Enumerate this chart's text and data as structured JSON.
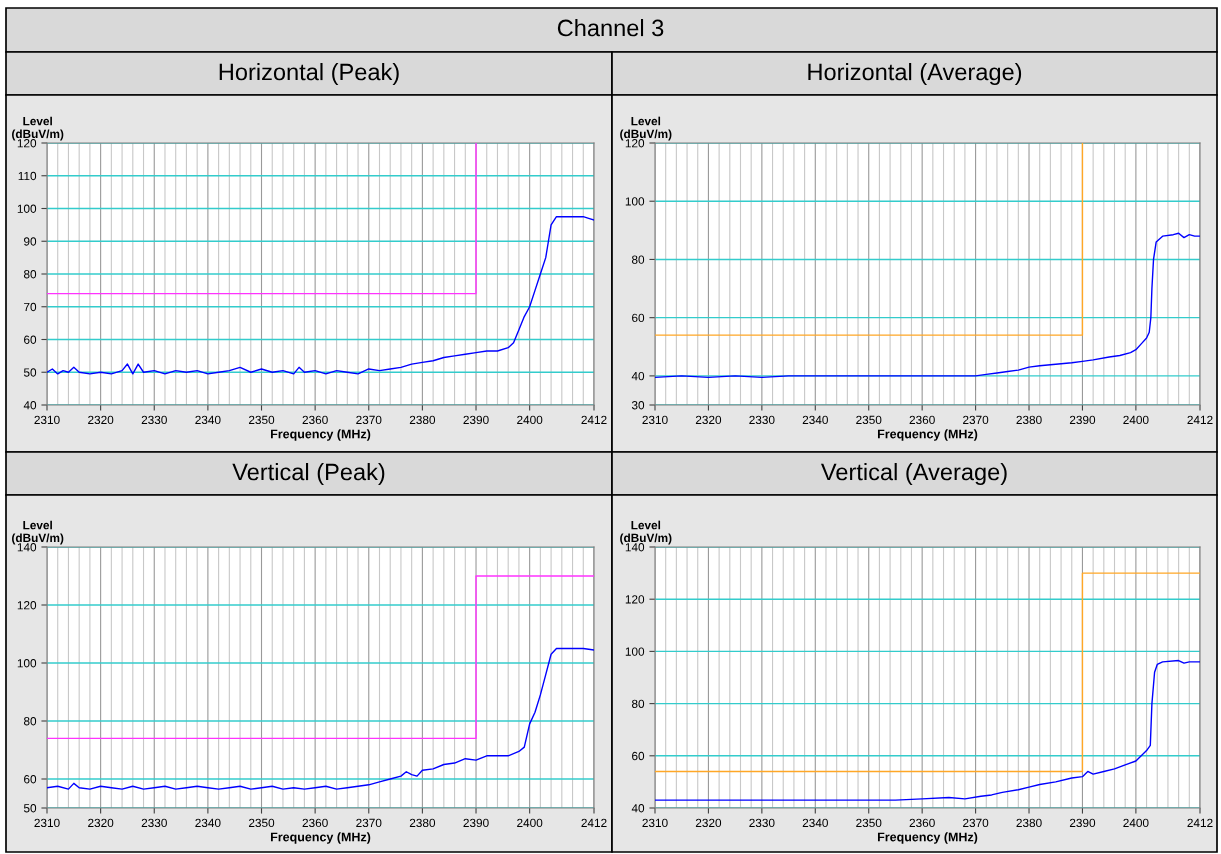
{
  "chart_data": [
    {
      "type": "line",
      "title": "Horizontal (Peak)",
      "annotations": [
        "Channel 3"
      ],
      "xlabel": "Frequency (MHz)",
      "ylabel": "Level\n(dBuV/m)",
      "xlim": [
        2310,
        2412
      ],
      "ylim": [
        40,
        120
      ],
      "yticks": [
        40,
        50,
        60,
        70,
        80,
        90,
        100,
        110,
        120
      ],
      "xticks": [
        2310,
        {
          "value": 2312,
          "label": null
        },
        {
          "value": 2314,
          "label": null
        },
        {
          "value": 2316,
          "label": null
        },
        {
          "value": 2318,
          "label": null
        },
        2320,
        {
          "value": 2322,
          "label": null
        },
        {
          "value": 2324,
          "label": null
        },
        {
          "value": 2326,
          "label": null
        },
        {
          "value": 2328,
          "label": null
        },
        2330,
        {
          "value": 2332,
          "label": null
        },
        {
          "value": 2334,
          "label": null
        },
        {
          "value": 2336,
          "label": null
        },
        {
          "value": 2338,
          "label": null
        },
        2340,
        {
          "value": 2342,
          "label": null
        },
        {
          "value": 2344,
          "label": null
        },
        {
          "value": 2346,
          "label": null
        },
        {
          "value": 2348,
          "label": null
        },
        2350,
        {
          "value": 2352,
          "label": null
        },
        {
          "value": 2354,
          "label": null
        },
        {
          "value": 2356,
          "label": null
        },
        {
          "value": 2358,
          "label": null
        },
        2360,
        {
          "value": 2362,
          "label": null
        },
        {
          "value": 2364,
          "label": null
        },
        {
          "value": 2366,
          "label": null
        },
        {
          "value": 2368,
          "label": null
        },
        2370,
        {
          "value": 2372,
          "label": null
        },
        {
          "value": 2374,
          "label": null
        },
        {
          "value": 2376,
          "label": null
        },
        {
          "value": 2378,
          "label": null
        },
        2380,
        {
          "value": 2382,
          "label": null
        },
        {
          "value": 2384,
          "label": null
        },
        {
          "value": 2386,
          "label": null
        },
        {
          "value": 2388,
          "label": null
        },
        2390,
        {
          "value": 2392,
          "label": null
        },
        {
          "value": 2394,
          "label": null
        },
        {
          "value": 2396,
          "label": null
        },
        {
          "value": 2398,
          "label": null
        },
        2400,
        {
          "value": 2402,
          "label": null
        },
        {
          "value": 2404,
          "label": null
        },
        {
          "value": 2406,
          "label": null
        },
        {
          "value": 2408,
          "label": null
        },
        {
          "value": 2410,
          "label": null
        },
        2412
      ],
      "grid": true,
      "series": [
        {
          "color": "#ff33ff",
          "x": [
            2310,
            2390,
            2390
          ],
          "values": [
            74,
            74,
            120
          ]
        },
        {
          "color": "#0000ff",
          "x": [
            2310,
            2311,
            2312,
            2313,
            2314,
            2315,
            2316,
            2318,
            2320,
            2322,
            2324,
            2325,
            2326,
            2327,
            2328,
            2330,
            2332,
            2334,
            2336,
            2338,
            2340,
            2342,
            2344,
            2346,
            2348,
            2350,
            2352,
            2354,
            2356,
            2357,
            2358,
            2360,
            2362,
            2364,
            2366,
            2368,
            2370,
            2372,
            2374,
            2376,
            2378,
            2380,
            2382,
            2384,
            2386,
            2388,
            2390,
            2392,
            2394,
            2396,
            2397,
            2398,
            2399,
            2400,
            2401,
            2402,
            2403,
            2403.5,
            2404,
            2405,
            2406,
            2408,
            2410,
            2411,
            2412
          ],
          "values": [
            50,
            51,
            49.5,
            50.5,
            50,
            51.5,
            50,
            49.5,
            50,
            49.5,
            50.5,
            52.5,
            49.5,
            52.5,
            50,
            50.5,
            49.5,
            50.5,
            50,
            50.5,
            49.5,
            50,
            50.5,
            51.5,
            50,
            51,
            50,
            50.5,
            49.5,
            51.5,
            50,
            50.5,
            49.5,
            50.5,
            50,
            49.5,
            51,
            50.5,
            51,
            51.5,
            52.5,
            53,
            53.5,
            54.5,
            55,
            55.5,
            56,
            56.5,
            56.5,
            57.5,
            59,
            63,
            67,
            70,
            75,
            80,
            85,
            90,
            95,
            97.5,
            97.5,
            97.5,
            97.5,
            97,
            96.5
          ]
        }
      ]
    },
    {
      "type": "line",
      "title": "Horizontal (Average)",
      "xlabel": "Frequency (MHz)",
      "ylabel": "Level\n(dBuV/m)",
      "xlim": [
        2310,
        2412
      ],
      "ylim": [
        30,
        120
      ],
      "yticks": [
        30,
        40,
        60,
        80,
        100,
        120
      ],
      "xticks": [
        2310,
        {
          "value": 2312,
          "label": null
        },
        {
          "value": 2314,
          "label": null
        },
        {
          "value": 2316,
          "label": null
        },
        {
          "value": 2318,
          "label": null
        },
        2320,
        {
          "value": 2322,
          "label": null
        },
        {
          "value": 2324,
          "label": null
        },
        {
          "value": 2326,
          "label": null
        },
        {
          "value": 2328,
          "label": null
        },
        2330,
        {
          "value": 2332,
          "label": null
        },
        {
          "value": 2334,
          "label": null
        },
        {
          "value": 2336,
          "label": null
        },
        {
          "value": 2338,
          "label": null
        },
        2340,
        {
          "value": 2342,
          "label": null
        },
        {
          "value": 2344,
          "label": null
        },
        {
          "value": 2346,
          "label": null
        },
        {
          "value": 2348,
          "label": null
        },
        2350,
        {
          "value": 2352,
          "label": null
        },
        {
          "value": 2354,
          "label": null
        },
        {
          "value": 2356,
          "label": null
        },
        {
          "value": 2358,
          "label": null
        },
        2360,
        {
          "value": 2362,
          "label": null
        },
        {
          "value": 2364,
          "label": null
        },
        {
          "value": 2366,
          "label": null
        },
        {
          "value": 2368,
          "label": null
        },
        2370,
        {
          "value": 2372,
          "label": null
        },
        {
          "value": 2374,
          "label": null
        },
        {
          "value": 2376,
          "label": null
        },
        {
          "value": 2378,
          "label": null
        },
        2380,
        {
          "value": 2382,
          "label": null
        },
        {
          "value": 2384,
          "label": null
        },
        {
          "value": 2386,
          "label": null
        },
        {
          "value": 2388,
          "label": null
        },
        2390,
        {
          "value": 2392,
          "label": null
        },
        {
          "value": 2394,
          "label": null
        },
        {
          "value": 2396,
          "label": null
        },
        {
          "value": 2398,
          "label": null
        },
        2400,
        {
          "value": 2402,
          "label": null
        },
        {
          "value": 2404,
          "label": null
        },
        {
          "value": 2406,
          "label": null
        },
        {
          "value": 2408,
          "label": null
        },
        {
          "value": 2410,
          "label": null
        },
        2412
      ],
      "grid": true,
      "series": [
        {
          "color": "#ffa726",
          "x": [
            2310,
            2390,
            2390
          ],
          "values": [
            54,
            54,
            120
          ]
        },
        {
          "color": "#0000ff",
          "x": [
            2310,
            2315,
            2320,
            2325,
            2330,
            2335,
            2340,
            2345,
            2350,
            2355,
            2360,
            2365,
            2370,
            2372,
            2374,
            2376,
            2378,
            2380,
            2382,
            2385,
            2388,
            2390,
            2392,
            2395,
            2397,
            2399,
            2400,
            2401,
            2402,
            2402.5,
            2402.8,
            2403,
            2403.3,
            2403.8,
            2405,
            2407,
            2408,
            2409,
            2410,
            2411,
            2412
          ],
          "values": [
            39.5,
            40,
            39.5,
            40,
            39.5,
            40,
            40,
            40,
            40,
            40,
            40,
            40,
            40,
            40.5,
            41,
            41.5,
            42,
            43,
            43.5,
            44,
            44.5,
            45,
            45.5,
            46.5,
            47,
            48,
            49,
            51,
            53,
            55,
            60,
            70,
            80,
            86,
            88,
            88.5,
            89,
            87.5,
            88.5,
            88,
            88
          ]
        }
      ]
    },
    {
      "type": "line",
      "title": "Vertical (Peak)",
      "xlabel": "Frequency (MHz)",
      "ylabel": "Level\n(dBuV/m)",
      "xlim": [
        2310,
        2412
      ],
      "ylim": [
        50,
        140
      ],
      "yticks": [
        50,
        60,
        80,
        100,
        120,
        140
      ],
      "xticks": [
        2310,
        {
          "value": 2312,
          "label": null
        },
        {
          "value": 2314,
          "label": null
        },
        {
          "value": 2316,
          "label": null
        },
        {
          "value": 2318,
          "label": null
        },
        2320,
        {
          "value": 2322,
          "label": null
        },
        {
          "value": 2324,
          "label": null
        },
        {
          "value": 2326,
          "label": null
        },
        {
          "value": 2328,
          "label": null
        },
        2330,
        {
          "value": 2332,
          "label": null
        },
        {
          "value": 2334,
          "label": null
        },
        {
          "value": 2336,
          "label": null
        },
        {
          "value": 2338,
          "label": null
        },
        2340,
        {
          "value": 2342,
          "label": null
        },
        {
          "value": 2344,
          "label": null
        },
        {
          "value": 2346,
          "label": null
        },
        {
          "value": 2348,
          "label": null
        },
        2350,
        {
          "value": 2352,
          "label": null
        },
        {
          "value": 2354,
          "label": null
        },
        {
          "value": 2356,
          "label": null
        },
        {
          "value": 2358,
          "label": null
        },
        2360,
        {
          "value": 2362,
          "label": null
        },
        {
          "value": 2364,
          "label": null
        },
        {
          "value": 2366,
          "label": null
        },
        {
          "value": 2368,
          "label": null
        },
        2370,
        {
          "value": 2372,
          "label": null
        },
        {
          "value": 2374,
          "label": null
        },
        {
          "value": 2376,
          "label": null
        },
        {
          "value": 2378,
          "label": null
        },
        2380,
        {
          "value": 2382,
          "label": null
        },
        {
          "value": 2384,
          "label": null
        },
        {
          "value": 2386,
          "label": null
        },
        {
          "value": 2388,
          "label": null
        },
        2390,
        {
          "value": 2392,
          "label": null
        },
        {
          "value": 2394,
          "label": null
        },
        {
          "value": 2396,
          "label": null
        },
        {
          "value": 2398,
          "label": null
        },
        2400,
        {
          "value": 2402,
          "label": null
        },
        {
          "value": 2404,
          "label": null
        },
        {
          "value": 2406,
          "label": null
        },
        {
          "value": 2408,
          "label": null
        },
        {
          "value": 2410,
          "label": null
        },
        2412
      ],
      "grid": true,
      "series": [
        {
          "color": "#ff33ff",
          "x": [
            2310,
            2390,
            2390,
            2412
          ],
          "values": [
            74,
            74,
            130,
            130
          ]
        },
        {
          "color": "#0000ff",
          "x": [
            2310,
            2312,
            2314,
            2315,
            2316,
            2318,
            2320,
            2322,
            2324,
            2326,
            2328,
            2330,
            2332,
            2334,
            2336,
            2338,
            2340,
            2342,
            2344,
            2346,
            2348,
            2350,
            2352,
            2354,
            2356,
            2358,
            2360,
            2362,
            2364,
            2366,
            2368,
            2370,
            2372,
            2374,
            2376,
            2377,
            2378,
            2379,
            2380,
            2382,
            2384,
            2386,
            2388,
            2390,
            2392,
            2394,
            2396,
            2398,
            2399,
            2400,
            2401,
            2402,
            2403,
            2404,
            2405,
            2407,
            2410,
            2412
          ],
          "values": [
            57,
            57.5,
            56.5,
            58.5,
            57,
            56.5,
            57.5,
            57,
            56.5,
            57.5,
            56.5,
            57,
            57.5,
            56.5,
            57,
            57.5,
            57,
            56.5,
            57,
            57.5,
            56.5,
            57,
            57.5,
            56.5,
            57,
            56.5,
            57,
            57.5,
            56.5,
            57,
            57.5,
            58,
            59,
            60,
            61,
            62.5,
            61.5,
            61,
            63,
            63.5,
            65,
            65.5,
            67,
            66.5,
            68,
            68,
            68,
            69.5,
            71,
            79,
            83,
            89,
            96,
            103,
            105,
            105,
            105,
            104.5
          ]
        }
      ]
    },
    {
      "type": "line",
      "title": "Vertical (Average)",
      "xlabel": "Frequency (MHz)",
      "ylabel": "Level\n(dBuV/m)",
      "xlim": [
        2310,
        2412
      ],
      "ylim": [
        40,
        140
      ],
      "yticks": [
        40,
        60,
        80,
        100,
        120,
        140
      ],
      "xticks": [
        2310,
        {
          "value": 2312,
          "label": null
        },
        {
          "value": 2314,
          "label": null
        },
        {
          "value": 2316,
          "label": null
        },
        {
          "value": 2318,
          "label": null
        },
        2320,
        {
          "value": 2322,
          "label": null
        },
        {
          "value": 2324,
          "label": null
        },
        {
          "value": 2326,
          "label": null
        },
        {
          "value": 2328,
          "label": null
        },
        2330,
        {
          "value": 2332,
          "label": null
        },
        {
          "value": 2334,
          "label": null
        },
        {
          "value": 2336,
          "label": null
        },
        {
          "value": 2338,
          "label": null
        },
        2340,
        {
          "value": 2342,
          "label": null
        },
        {
          "value": 2344,
          "label": null
        },
        {
          "value": 2346,
          "label": null
        },
        {
          "value": 2348,
          "label": null
        },
        2350,
        {
          "value": 2352,
          "label": null
        },
        {
          "value": 2354,
          "label": null
        },
        {
          "value": 2356,
          "label": null
        },
        {
          "value": 2358,
          "label": null
        },
        2360,
        {
          "value": 2362,
          "label": null
        },
        {
          "value": 2364,
          "label": null
        },
        {
          "value": 2366,
          "label": null
        },
        {
          "value": 2368,
          "label": null
        },
        2370,
        {
          "value": 2372,
          "label": null
        },
        {
          "value": 2374,
          "label": null
        },
        {
          "value": 2376,
          "label": null
        },
        {
          "value": 2378,
          "label": null
        },
        2380,
        {
          "value": 2382,
          "label": null
        },
        {
          "value": 2384,
          "label": null
        },
        {
          "value": 2386,
          "label": null
        },
        {
          "value": 2388,
          "label": null
        },
        2390,
        {
          "value": 2392,
          "label": null
        },
        {
          "value": 2394,
          "label": null
        },
        {
          "value": 2396,
          "label": null
        },
        {
          "value": 2398,
          "label": null
        },
        2400,
        {
          "value": 2402,
          "label": null
        },
        {
          "value": 2404,
          "label": null
        },
        {
          "value": 2406,
          "label": null
        },
        {
          "value": 2408,
          "label": null
        },
        {
          "value": 2410,
          "label": null
        },
        2412
      ],
      "grid": true,
      "series": [
        {
          "color": "#ffa726",
          "x": [
            2310,
            2390,
            2390,
            2412
          ],
          "values": [
            54,
            54,
            130,
            130
          ]
        },
        {
          "color": "#0000ff",
          "x": [
            2310,
            2315,
            2320,
            2325,
            2330,
            2335,
            2340,
            2345,
            2350,
            2355,
            2360,
            2365,
            2368,
            2371,
            2373,
            2375,
            2378,
            2380,
            2382,
            2385,
            2388,
            2390,
            2391,
            2392,
            2394,
            2396,
            2398,
            2400,
            2401,
            2402,
            2402.7,
            2403,
            2403.5,
            2404,
            2405,
            2408,
            2409,
            2410,
            2412
          ],
          "values": [
            43,
            43,
            43,
            43,
            43,
            43,
            43,
            43,
            43,
            43,
            43.5,
            44,
            43.5,
            44.5,
            45,
            46,
            47,
            48,
            49,
            50,
            51.5,
            52,
            54,
            53,
            54,
            55,
            56.5,
            58,
            60,
            62,
            64,
            80,
            92,
            95,
            96,
            96.5,
            95.5,
            96,
            96
          ]
        }
      ]
    }
  ]
}
